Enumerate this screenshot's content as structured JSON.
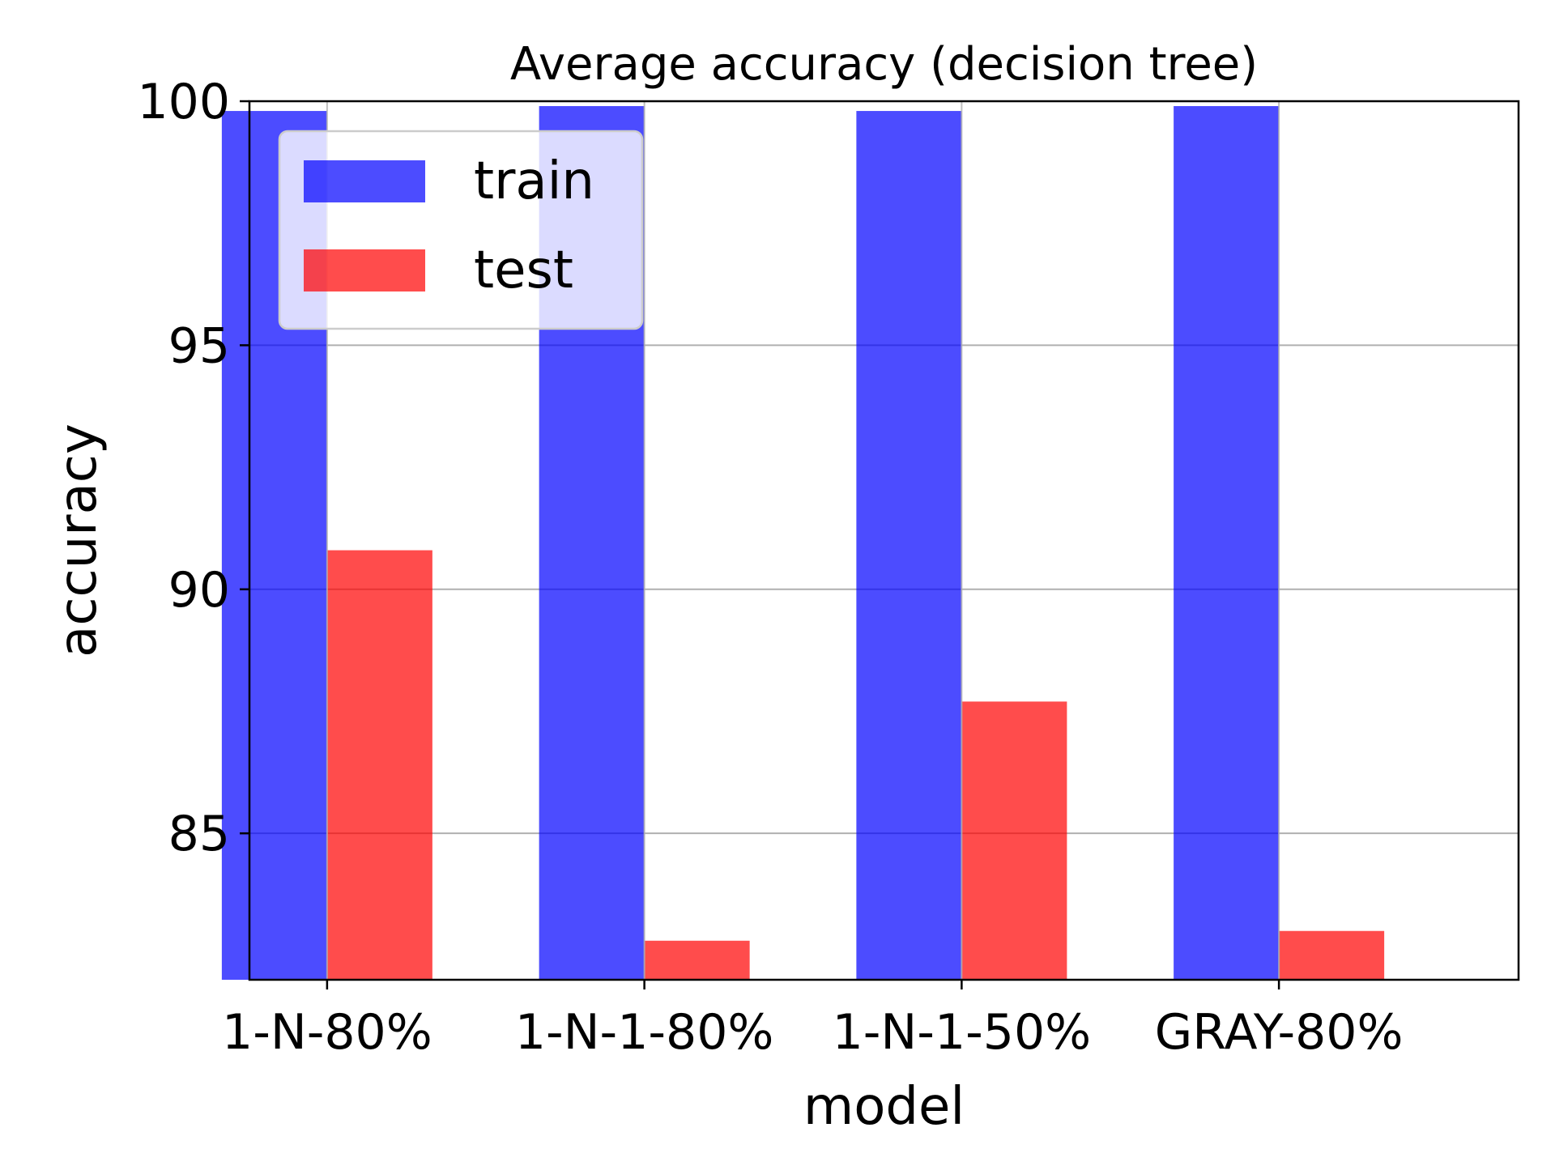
{
  "chart_data": {
    "type": "bar",
    "title": "Average accuracy (decision tree)",
    "xlabel": "model",
    "ylabel": "accuracy",
    "categories": [
      "1-N-80%",
      "1-N-1-80%",
      "1-N-1-50%",
      "GRAY-80%"
    ],
    "series": [
      {
        "name": "train",
        "color": "#0000ff",
        "values": [
          99.8,
          99.9,
          99.8,
          99.9
        ]
      },
      {
        "name": "test",
        "color": "#ff0000",
        "values": [
          90.8,
          82.8,
          87.7,
          83.0
        ]
      }
    ],
    "ylim": [
      82,
      100
    ],
    "yticks": [
      85,
      90,
      95,
      100
    ],
    "grid": "y",
    "legend_position": "top-left"
  }
}
